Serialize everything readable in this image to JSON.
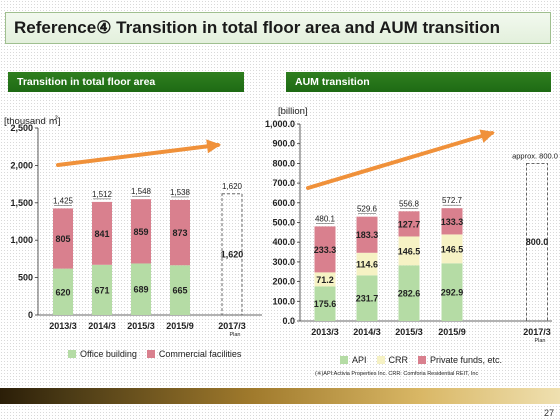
{
  "page": {
    "title": "Reference④ Transition in total floor area and AUM transition",
    "page_number": "27",
    "footnote": "(※)API:Activia Properties Inc.  CRR: Comforia Residential REIT, Inc"
  },
  "colors": {
    "green_bar": "#b5dca5",
    "pink_bar": "#d9808e",
    "cream_bar": "#f6f2c4",
    "arrow": "#f0913a"
  },
  "chart_data": [
    {
      "type": "bar",
      "title": "Transition in total floor area",
      "ylabel": "[thousand ㎡]",
      "ylim": [
        0,
        2500
      ],
      "yticks": [
        "0",
        "500",
        "1,000",
        "1,500",
        "2,000",
        "2,500"
      ],
      "categories": [
        "2013/3",
        "2014/3",
        "2015/3",
        "2015/9",
        "2017/3"
      ],
      "category_sublabels": [
        "",
        "",
        "",
        "",
        "Plan"
      ],
      "series": [
        {
          "name": "Office building",
          "values": [
            620,
            671,
            689,
            665,
            null
          ],
          "labels": [
            "620",
            "671",
            "689",
            "665",
            ""
          ]
        },
        {
          "name": "Commercial facilities",
          "values": [
            805,
            841,
            859,
            873,
            null
          ],
          "labels": [
            "805",
            "841",
            "859",
            "873",
            ""
          ]
        }
      ],
      "totals": [
        1425,
        1512,
        1548,
        1538,
        1620
      ],
      "total_labels": [
        "1,425",
        "1,512",
        "1,548",
        "1,538",
        "1,620"
      ],
      "plan": {
        "category": "2017/3",
        "value": 1620,
        "label": "1,620"
      },
      "legend_position": "bottom",
      "grid": false
    },
    {
      "type": "bar",
      "title": "AUM transition",
      "ylabel": "[billion]",
      "ylim": [
        0,
        1000
      ],
      "yticks": [
        "0.0",
        "100.0",
        "200.0",
        "300.0",
        "400.0",
        "500.0",
        "600.0",
        "700.0",
        "800.0",
        "900.0",
        "1,000.0"
      ],
      "categories": [
        "2013/3",
        "2014/3",
        "2015/3",
        "2015/9",
        "2017/3"
      ],
      "category_sublabels": [
        "",
        "",
        "",
        "",
        "Plan"
      ],
      "series": [
        {
          "name": "API",
          "values": [
            175.6,
            231.7,
            282.6,
            292.9,
            null
          ],
          "labels": [
            "175.6",
            "231.7",
            "282.6",
            "292.9",
            ""
          ]
        },
        {
          "name": "CRR",
          "values": [
            71.2,
            114.6,
            146.5,
            146.5,
            null
          ],
          "labels": [
            "71.2",
            "114.6",
            "146.5",
            "146.5",
            ""
          ]
        },
        {
          "name": "Private funds, etc.",
          "values": [
            233.3,
            183.3,
            127.7,
            133.3,
            null
          ],
          "labels": [
            "233.3",
            "183.3",
            "127.7",
            "133.3",
            ""
          ]
        }
      ],
      "totals": [
        480.1,
        529.6,
        556.8,
        572.7,
        800.0
      ],
      "total_labels": [
        "480.1",
        "529.6",
        "556.8",
        "572.7",
        ""
      ],
      "plan": {
        "category": "2017/3",
        "value": 800.0,
        "label": "800.0",
        "annotation": "approx. 800.0"
      },
      "legend_position": "bottom",
      "grid": false
    }
  ]
}
